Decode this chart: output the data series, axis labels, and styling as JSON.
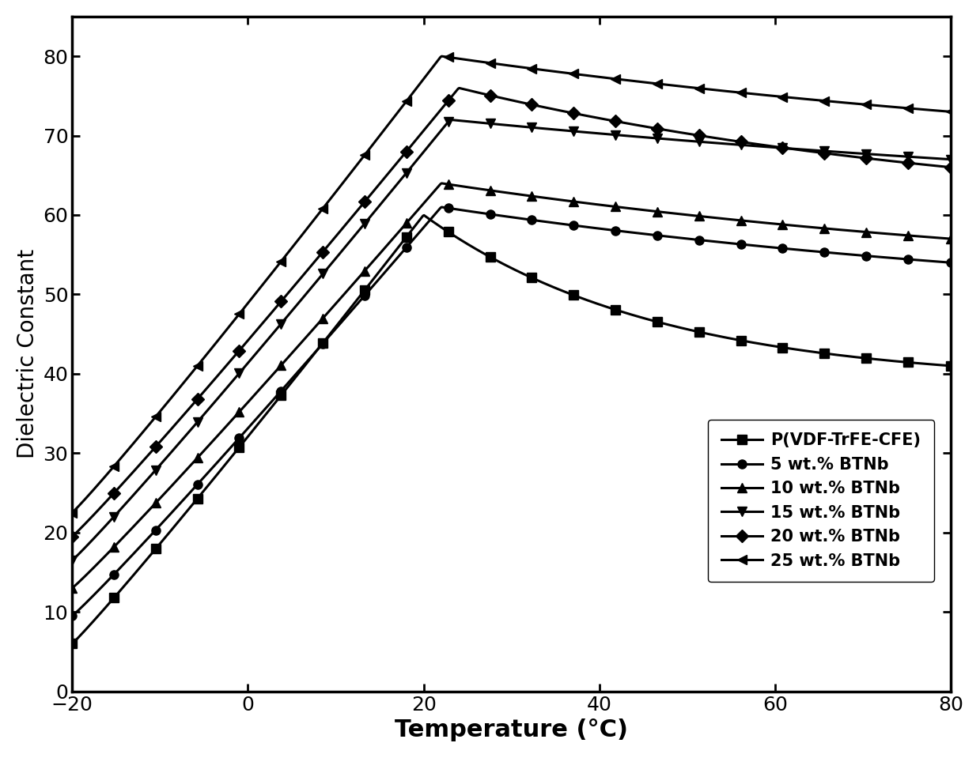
{
  "title": "",
  "xlabel": "Temperature (°C)",
  "ylabel": "Dielectric Constant",
  "xlim": [
    -20,
    80
  ],
  "ylim": [
    0,
    85
  ],
  "yticks": [
    0,
    10,
    20,
    30,
    40,
    50,
    60,
    70,
    80
  ],
  "xticks": [
    -20,
    0,
    20,
    40,
    60,
    80
  ],
  "series": [
    {
      "label": "P(VDF-TrFE-CFE)",
      "marker": "s",
      "color": "black",
      "val_at_minus20": 6.0,
      "peak_temp": 20,
      "peak_val": 60,
      "val_at_80": 41,
      "decay_rate": 0.038
    },
    {
      "label": "5 wt.% BTNb",
      "marker": "o",
      "color": "black",
      "val_at_minus20": 9.5,
      "peak_temp": 22,
      "peak_val": 61,
      "val_at_80": 54,
      "decay_rate": 0.012
    },
    {
      "label": "10 wt.% BTNb",
      "marker": "^",
      "color": "black",
      "val_at_minus20": 13.0,
      "peak_temp": 22,
      "peak_val": 64,
      "val_at_80": 57,
      "decay_rate": 0.012
    },
    {
      "label": "15 wt.% BTNb",
      "marker": "v",
      "color": "black",
      "val_at_minus20": 16.5,
      "peak_temp": 23,
      "peak_val": 72,
      "val_at_80": 67,
      "decay_rate": 0.008
    },
    {
      "label": "20 wt.% BTNb",
      "marker": "D",
      "color": "black",
      "val_at_minus20": 19.5,
      "peak_temp": 24,
      "peak_val": 76,
      "val_at_80": 66,
      "decay_rate": 0.016
    },
    {
      "label": "25 wt.% BTNb",
      "marker": "<",
      "color": "black",
      "val_at_minus20": 22.5,
      "peak_temp": 22,
      "peak_val": 80,
      "val_at_80": 73,
      "decay_rate": 0.01
    }
  ],
  "legend_loc": "lower right",
  "markersize": 8,
  "linewidth": 2.2,
  "n_markers": 22,
  "background_color": "white",
  "xlabel_fontsize": 22,
  "ylabel_fontsize": 20,
  "tick_fontsize": 18,
  "legend_fontsize": 15
}
